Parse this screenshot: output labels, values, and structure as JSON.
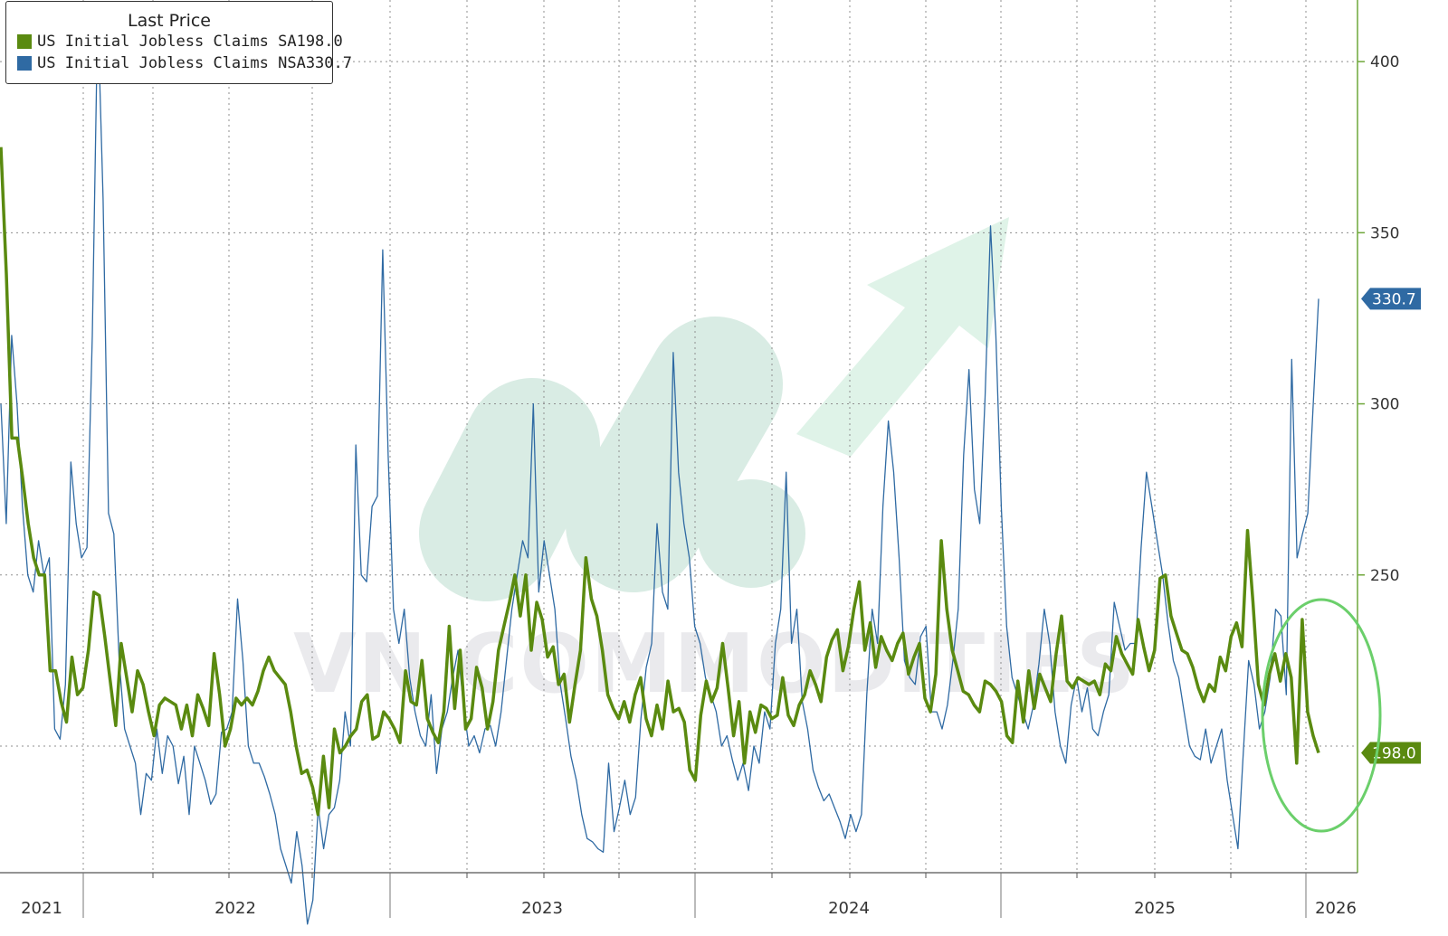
{
  "legend": {
    "title": "Last Price",
    "items": [
      {
        "name": "US Initial Jobless Claims SA",
        "value": "198.0",
        "color": "#5a8a10"
      },
      {
        "name": "US Initial Jobless Claims NSA",
        "value": "330.7",
        "color": "#2f6aa3"
      }
    ]
  },
  "watermark": {
    "text": "VN COMMODITIES"
  },
  "chart_data": {
    "type": "line",
    "title": "",
    "xlabel": "",
    "ylabel": "",
    "x_ticks": [
      "2021",
      "2022",
      "2023",
      "2024",
      "2025",
      "2026"
    ],
    "y_ticks": [
      250,
      300,
      350,
      400
    ],
    "ylim": [
      163,
      418
    ],
    "xlim": [
      "2021-04",
      "2026-01-20"
    ],
    "grid": true,
    "last_value_tags": [
      {
        "series": "US Initial Jobless Claims NSA",
        "value": "330.7",
        "color": "#2f6aa3"
      },
      {
        "series": "US Initial Jobless Claims SA",
        "value": "198.0",
        "color": "#5a8a10"
      }
    ],
    "annotations": [
      "ellipse highlighting latest readings"
    ],
    "series": [
      {
        "name": "US Initial Jobless Claims SA",
        "color": "#5a8a10",
        "values": [
          375,
          338,
          290,
          290,
          278,
          265,
          255,
          250,
          250,
          222,
          222,
          213,
          207,
          226,
          215,
          217,
          228,
          245,
          244,
          232,
          219,
          206,
          230,
          220,
          210,
          222,
          218,
          210,
          203,
          212,
          214,
          213,
          212,
          205,
          212,
          203,
          215,
          211,
          206,
          227,
          215,
          200,
          205,
          214,
          212,
          214,
          212,
          216,
          222,
          226,
          222,
          220,
          218,
          210,
          200,
          192,
          193,
          188,
          180,
          197,
          182,
          205,
          198,
          200,
          203,
          205,
          213,
          215,
          202,
          203,
          210,
          208,
          205,
          201,
          222,
          213,
          212,
          225,
          208,
          204,
          201,
          210,
          235,
          211,
          228,
          205,
          208,
          223,
          217,
          205,
          213,
          228,
          235,
          242,
          250,
          238,
          250,
          228,
          242,
          237,
          226,
          229,
          218,
          221,
          207,
          218,
          228,
          255,
          243,
          238,
          228,
          215,
          211,
          208,
          213,
          207,
          215,
          220,
          208,
          203,
          212,
          205,
          219,
          210,
          211,
          207,
          193,
          190,
          209,
          219,
          213,
          217,
          230,
          217,
          203,
          213,
          195,
          210,
          204,
          212,
          211,
          208,
          209,
          220,
          209,
          206,
          212,
          215,
          222,
          218,
          213,
          226,
          231,
          234,
          222,
          229,
          240,
          248,
          228,
          236,
          223,
          232,
          228,
          225,
          230,
          233,
          221,
          226,
          230,
          214,
          210,
          221,
          260,
          240,
          228,
          222,
          216,
          215,
          212,
          210,
          219,
          218,
          216,
          213,
          203,
          201,
          219,
          207,
          222,
          211,
          221,
          217,
          213,
          227,
          238,
          219,
          217,
          220,
          219,
          218,
          219,
          215,
          224,
          222,
          232,
          227,
          224,
          221,
          237,
          229,
          222,
          228,
          249,
          250,
          238,
          233,
          228,
          227,
          223,
          217,
          213,
          218,
          216,
          226,
          222,
          232,
          236,
          229,
          263,
          242,
          218,
          212,
          221,
          227,
          219,
          227,
          220,
          195,
          237,
          210,
          203,
          198
        ]
      },
      {
        "name": "US Initial Jobless Claims NSA",
        "color": "#2f6aa3",
        "values": [
          300,
          265,
          320,
          300,
          270,
          250,
          245,
          260,
          250,
          255,
          205,
          202,
          218,
          283,
          265,
          255,
          258,
          320,
          415,
          360,
          268,
          262,
          225,
          205,
          200,
          195,
          180,
          192,
          190,
          205,
          192,
          203,
          200,
          189,
          197,
          180,
          200,
          195,
          190,
          183,
          186,
          204,
          205,
          210,
          243,
          225,
          200,
          195,
          195,
          191,
          186,
          180,
          170,
          165,
          160,
          175,
          165,
          148,
          155,
          182,
          170,
          180,
          182,
          190,
          210,
          200,
          288,
          250,
          248,
          270,
          273,
          345,
          285,
          240,
          230,
          240,
          220,
          210,
          203,
          200,
          215,
          192,
          205,
          210,
          220,
          228,
          212,
          200,
          203,
          198,
          205,
          206,
          200,
          210,
          225,
          240,
          250,
          260,
          255,
          300,
          245,
          260,
          250,
          240,
          218,
          208,
          197,
          190,
          180,
          173,
          172,
          170,
          169,
          195,
          175,
          182,
          190,
          180,
          185,
          208,
          223,
          230,
          265,
          245,
          240,
          315,
          280,
          265,
          255,
          235,
          230,
          220,
          215,
          210,
          200,
          203,
          196,
          190,
          195,
          187,
          200,
          195,
          210,
          205,
          230,
          240,
          280,
          230,
          240,
          213,
          205,
          193,
          188,
          184,
          186,
          182,
          178,
          173,
          180,
          175,
          180,
          215,
          240,
          230,
          270,
          295,
          280,
          255,
          225,
          220,
          218,
          232,
          235,
          210,
          210,
          205,
          212,
          225,
          240,
          285,
          310,
          275,
          265,
          302,
          352,
          320,
          270,
          235,
          220,
          215,
          210,
          205,
          212,
          224,
          240,
          230,
          210,
          200,
          195,
          212,
          220,
          210,
          217,
          205,
          203,
          210,
          215,
          242,
          235,
          228,
          230,
          230,
          258,
          280,
          270,
          260,
          250,
          236,
          225,
          220,
          210,
          200,
          197,
          196,
          205,
          195,
          200,
          205,
          190,
          180,
          170,
          198,
          225,
          218,
          205,
          210,
          220,
          240,
          238,
          215,
          313,
          255,
          262,
          268,
          300,
          330.7
        ]
      }
    ]
  }
}
